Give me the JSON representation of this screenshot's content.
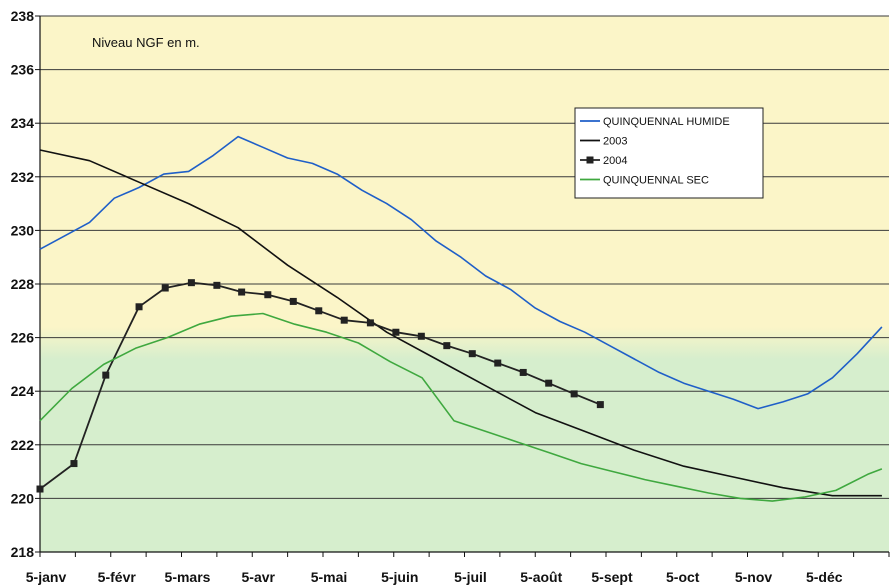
{
  "chart_data": {
    "type": "line",
    "note": "Niveau NGF en m.",
    "ylim": [
      218,
      238
    ],
    "yticks": [
      218,
      220,
      222,
      224,
      226,
      228,
      230,
      232,
      234,
      236,
      238
    ],
    "xlim": [
      0,
      12
    ],
    "x_categories": [
      "5-janv",
      "5-févr",
      "5-mars",
      "5-avr",
      "5-mai",
      "5-juin",
      "5-juil",
      "5-août",
      "5-sept",
      "5-oct",
      "5-nov",
      "5-déc"
    ],
    "grid": true,
    "legend_position": "upper-right",
    "colors": {
      "humide": "#1f5fc8",
      "y2003": "#111111",
      "y2004": "#222222",
      "sec": "#3fa83f",
      "bg_top": "#fbf5c8",
      "bg_bottom": "#d6eecd"
    },
    "series": [
      {
        "name": "QUINQUENNAL HUMIDE",
        "color_key": "humide",
        "marker": "none",
        "x": [
          0,
          0.35,
          0.7,
          1.05,
          1.4,
          1.75,
          2.1,
          2.45,
          2.8,
          3.15,
          3.5,
          3.85,
          4.2,
          4.55,
          4.9,
          5.25,
          5.6,
          5.95,
          6.3,
          6.65,
          7.0,
          7.35,
          7.7,
          8.05,
          8.4,
          8.75,
          9.1,
          9.45,
          9.8,
          10.15,
          10.5,
          10.85,
          11.2,
          11.55,
          11.9
        ],
        "values": [
          229.3,
          229.8,
          230.3,
          231.2,
          231.6,
          232.1,
          232.2,
          232.8,
          233.5,
          233.1,
          232.7,
          232.5,
          232.1,
          231.5,
          231.0,
          230.4,
          229.6,
          229.0,
          228.3,
          227.8,
          227.1,
          226.6,
          226.2,
          225.7,
          225.2,
          224.7,
          224.3,
          224.0,
          223.7,
          223.35,
          223.6,
          223.9,
          224.5,
          225.4,
          226.4
        ]
      },
      {
        "name": "2003",
        "color_key": "y2003",
        "marker": "none",
        "x": [
          0,
          0.7,
          1.4,
          2.1,
          2.8,
          3.5,
          4.2,
          4.9,
          5.6,
          6.3,
          7.0,
          7.7,
          8.4,
          9.1,
          9.8,
          10.5,
          11.2,
          11.9
        ],
        "values": [
          233.0,
          232.6,
          231.8,
          231.0,
          230.1,
          228.7,
          227.5,
          226.2,
          225.2,
          224.2,
          223.2,
          222.5,
          221.8,
          221.2,
          220.8,
          220.4,
          220.1,
          220.1
        ]
      },
      {
        "name": "2004",
        "color_key": "y2004",
        "marker": "square",
        "x": [
          0,
          0.48,
          0.93,
          1.4,
          1.77,
          2.14,
          2.5,
          2.85,
          3.22,
          3.58,
          3.94,
          4.3,
          4.67,
          5.03,
          5.39,
          5.75,
          6.11,
          6.47,
          6.83,
          7.19,
          7.55,
          7.92
        ],
        "values": [
          220.35,
          221.3,
          224.6,
          227.15,
          227.85,
          228.05,
          227.95,
          227.7,
          227.6,
          227.35,
          227.0,
          226.65,
          226.55,
          226.2,
          226.05,
          225.7,
          225.4,
          225.05,
          224.7,
          224.3,
          223.9,
          223.5
        ]
      },
      {
        "name": "QUINQUENNAL SEC",
        "color_key": "sec",
        "marker": "none",
        "x": [
          0,
          0.45,
          0.9,
          1.35,
          1.8,
          2.25,
          2.7,
          3.15,
          3.6,
          4.05,
          4.5,
          4.95,
          5.4,
          5.85,
          6.3,
          6.75,
          7.2,
          7.65,
          8.1,
          8.55,
          9.0,
          9.45,
          9.9,
          10.35,
          10.8,
          11.25,
          11.7,
          11.9
        ],
        "values": [
          222.9,
          224.1,
          225.0,
          225.6,
          226.0,
          226.5,
          226.8,
          226.9,
          226.5,
          226.2,
          225.8,
          225.1,
          224.5,
          222.9,
          222.5,
          222.1,
          221.7,
          221.3,
          221.0,
          220.7,
          220.45,
          220.2,
          220.0,
          219.9,
          220.05,
          220.3,
          220.9,
          221.1
        ]
      }
    ]
  }
}
